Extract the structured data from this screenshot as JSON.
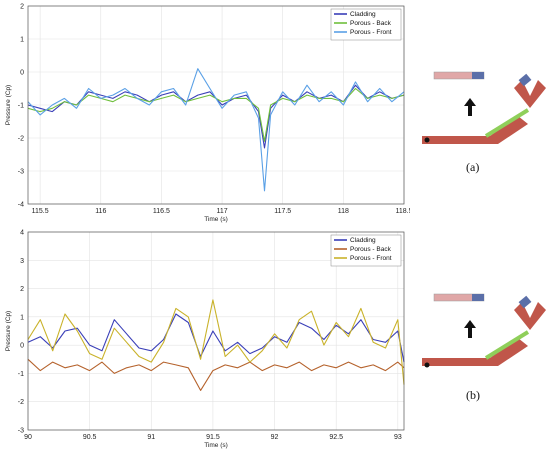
{
  "chart_data": [
    {
      "type": "line",
      "panel": "a",
      "xlabel": "Time (s)",
      "ylabel": "Pressure (Cp)",
      "xlim": [
        115.4,
        118.5
      ],
      "ylim": [
        -4,
        2
      ],
      "xticks": [
        "115.5",
        "116",
        "116.5",
        "117",
        "117.5",
        "118",
        "118.5"
      ],
      "xtick_values": [
        115.5,
        116,
        116.5,
        117,
        117.5,
        118,
        118.5
      ],
      "yticks": [
        "2",
        "1",
        "0",
        "-1",
        "-2",
        "-3",
        "-4"
      ],
      "ytick_values": [
        2,
        1,
        0,
        -1,
        -2,
        -3,
        -4
      ],
      "grid": true,
      "legend_position": "top-right",
      "series": [
        {
          "name": "Cladding",
          "color": "#3a3fb8",
          "x": [
            115.4,
            115.5,
            115.6,
            115.7,
            115.8,
            115.9,
            116.0,
            116.1,
            116.2,
            116.3,
            116.4,
            116.5,
            116.6,
            116.7,
            116.8,
            116.9,
            117.0,
            117.1,
            117.2,
            117.3,
            117.35,
            117.4,
            117.5,
            117.6,
            117.7,
            117.8,
            117.9,
            118.0,
            118.1,
            118.2,
            118.3,
            118.4,
            118.5
          ],
          "y": [
            -1.0,
            -1.1,
            -1.2,
            -0.9,
            -1.0,
            -0.6,
            -0.7,
            -0.8,
            -0.6,
            -0.7,
            -0.9,
            -0.7,
            -0.6,
            -0.9,
            -0.7,
            -0.6,
            -1.0,
            -0.8,
            -0.7,
            -1.2,
            -2.3,
            -1.1,
            -0.7,
            -0.9,
            -0.6,
            -0.8,
            -0.7,
            -0.9,
            -0.4,
            -0.8,
            -0.6,
            -0.8,
            -0.7
          ]
        },
        {
          "name": "Porous - Back",
          "color": "#6fbf3c",
          "x": [
            115.4,
            115.5,
            115.6,
            115.7,
            115.8,
            115.9,
            116.0,
            116.1,
            116.2,
            116.3,
            116.4,
            116.5,
            116.6,
            116.7,
            116.8,
            116.9,
            117.0,
            117.1,
            117.2,
            117.3,
            117.35,
            117.4,
            117.5,
            117.6,
            117.7,
            117.8,
            117.9,
            118.0,
            118.1,
            118.2,
            118.3,
            118.4,
            118.5
          ],
          "y": [
            -1.1,
            -1.2,
            -1.1,
            -0.9,
            -1.0,
            -0.7,
            -0.8,
            -0.9,
            -0.7,
            -0.8,
            -0.9,
            -0.8,
            -0.7,
            -0.9,
            -0.8,
            -0.7,
            -0.9,
            -0.8,
            -0.8,
            -1.1,
            -2.1,
            -1.0,
            -0.8,
            -0.9,
            -0.7,
            -0.8,
            -0.8,
            -0.9,
            -0.5,
            -0.8,
            -0.7,
            -0.8,
            -0.7
          ]
        },
        {
          "name": "Porous - Front",
          "color": "#5aa0e6",
          "x": [
            115.4,
            115.5,
            115.6,
            115.7,
            115.8,
            115.9,
            116.0,
            116.1,
            116.2,
            116.3,
            116.4,
            116.5,
            116.6,
            116.7,
            116.8,
            116.9,
            117.0,
            117.1,
            117.2,
            117.3,
            117.35,
            117.4,
            117.5,
            117.6,
            117.7,
            117.8,
            117.9,
            118.0,
            118.1,
            118.2,
            118.3,
            118.4,
            118.5
          ],
          "y": [
            -0.9,
            -1.3,
            -1.0,
            -0.8,
            -1.1,
            -0.5,
            -0.8,
            -0.7,
            -0.5,
            -0.8,
            -1.0,
            -0.6,
            -0.5,
            -1.0,
            0.1,
            -0.5,
            -1.1,
            -0.7,
            -0.6,
            -1.4,
            -3.6,
            -1.3,
            -0.6,
            -1.0,
            -0.4,
            -0.9,
            -0.6,
            -1.0,
            -0.3,
            -0.9,
            -0.5,
            -0.9,
            -0.6
          ]
        }
      ]
    },
    {
      "type": "line",
      "panel": "b",
      "xlabel": "Time (s)",
      "ylabel": "Pressure (Cp)",
      "xlim": [
        90,
        93.05
      ],
      "ylim": [
        -3,
        4
      ],
      "xticks": [
        "90",
        "90.5",
        "91",
        "91.5",
        "92",
        "92.5",
        "93"
      ],
      "xtick_values": [
        90,
        90.5,
        91,
        91.5,
        92,
        92.5,
        93
      ],
      "yticks": [
        "4",
        "3",
        "2",
        "1",
        "0",
        "-1",
        "-2",
        "-3"
      ],
      "ytick_values": [
        4,
        3,
        2,
        1,
        0,
        -1,
        -2,
        -3
      ],
      "grid": true,
      "legend_position": "top-right",
      "series": [
        {
          "name": "Cladding",
          "color": "#3a3fb8",
          "x": [
            90.0,
            90.1,
            90.2,
            90.3,
            90.4,
            90.5,
            90.6,
            90.7,
            90.8,
            90.9,
            91.0,
            91.1,
            91.2,
            91.3,
            91.4,
            91.5,
            91.6,
            91.7,
            91.8,
            91.9,
            92.0,
            92.1,
            92.2,
            92.3,
            92.4,
            92.5,
            92.6,
            92.7,
            92.8,
            92.9,
            93.0,
            93.05
          ],
          "y": [
            0.1,
            0.3,
            -0.1,
            0.5,
            0.6,
            0.0,
            -0.2,
            0.9,
            0.4,
            -0.1,
            -0.2,
            0.2,
            1.1,
            0.8,
            -0.4,
            0.5,
            -0.2,
            0.1,
            -0.3,
            -0.1,
            0.3,
            0.1,
            0.8,
            0.6,
            0.2,
            0.7,
            0.4,
            0.9,
            0.2,
            0.1,
            0.5,
            -0.6
          ]
        },
        {
          "name": "Porous - Back",
          "color": "#b5622c",
          "x": [
            90.0,
            90.1,
            90.2,
            90.3,
            90.4,
            90.5,
            90.6,
            90.7,
            90.8,
            90.9,
            91.0,
            91.1,
            91.2,
            91.3,
            91.4,
            91.5,
            91.6,
            91.7,
            91.8,
            91.9,
            92.0,
            92.1,
            92.2,
            92.3,
            92.4,
            92.5,
            92.6,
            92.7,
            92.8,
            92.9,
            93.0,
            93.05
          ],
          "y": [
            -0.5,
            -0.9,
            -0.6,
            -0.8,
            -0.7,
            -0.9,
            -0.6,
            -1.0,
            -0.8,
            -0.7,
            -0.9,
            -0.6,
            -0.7,
            -0.8,
            -1.6,
            -0.9,
            -0.7,
            -0.8,
            -0.6,
            -0.9,
            -0.7,
            -0.8,
            -0.6,
            -0.9,
            -0.7,
            -0.8,
            -0.6,
            -0.8,
            -0.7,
            -0.9,
            -0.6,
            -0.8
          ]
        },
        {
          "name": "Porous - Front",
          "color": "#c9b22a",
          "x": [
            90.0,
            90.1,
            90.2,
            90.3,
            90.4,
            90.5,
            90.6,
            90.7,
            90.8,
            90.9,
            91.0,
            91.1,
            91.2,
            91.3,
            91.4,
            91.5,
            91.6,
            91.7,
            91.8,
            91.9,
            92.0,
            92.1,
            92.2,
            92.3,
            92.4,
            92.5,
            92.6,
            92.7,
            92.8,
            92.9,
            93.0,
            93.05
          ],
          "y": [
            0.2,
            0.9,
            -0.2,
            1.1,
            0.5,
            -0.3,
            -0.5,
            0.6,
            0.1,
            -0.4,
            -0.6,
            0.1,
            1.3,
            1.0,
            -0.5,
            1.6,
            -0.4,
            0.0,
            -0.6,
            -0.2,
            0.4,
            -0.1,
            0.9,
            1.2,
            0.0,
            0.8,
            0.3,
            1.3,
            0.1,
            -0.1,
            0.9,
            -1.4
          ]
        }
      ]
    }
  ],
  "figure": {
    "caption_a": "(a)",
    "caption_b": "(b)"
  },
  "colors": {
    "diagram_beam": "#c0564a",
    "diagram_panel_front": "#d98c8c",
    "diagram_panel_back": "#5b6fa8",
    "diagram_strut": "#8fcf5a",
    "diagram_arrow": "#111111"
  }
}
